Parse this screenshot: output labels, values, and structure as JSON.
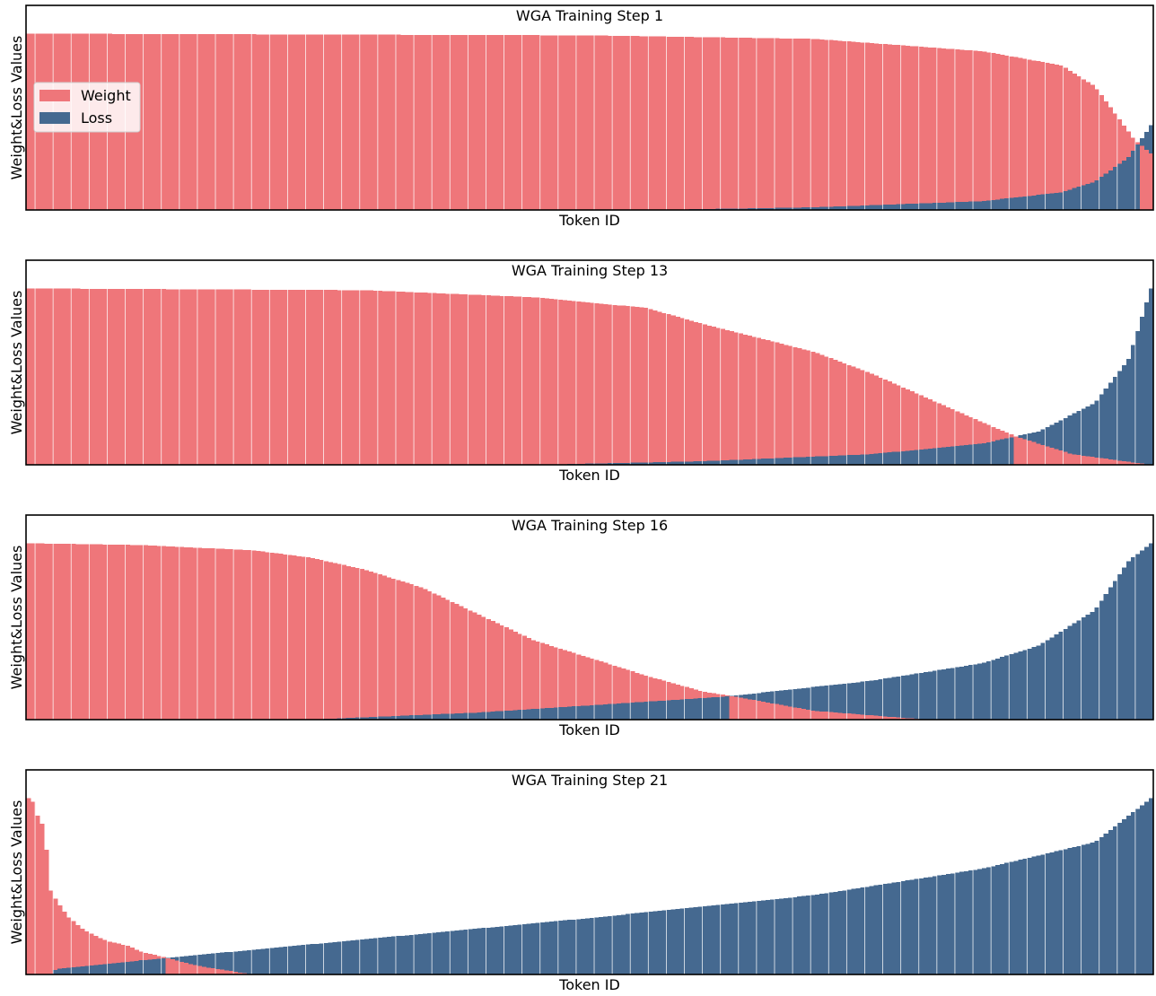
{
  "chart_data": [
    {
      "type": "bar",
      "title": "WGA Training Step 1",
      "xlabel": "Token ID",
      "ylabel": "Weight&Loss Values",
      "legend": {
        "placement": "upper-left",
        "entries": [
          "Weight",
          "Loss"
        ]
      },
      "colors": {
        "weight": "#ef767a",
        "loss": "#456990"
      },
      "n_tokens": 250,
      "ylim": [
        0,
        1.16
      ],
      "grid": false,
      "weight_keypoints": [
        [
          0,
          1.0
        ],
        [
          0.5,
          0.99
        ],
        [
          0.7,
          0.97
        ],
        [
          0.85,
          0.9
        ],
        [
          0.92,
          0.82
        ],
        [
          0.95,
          0.7
        ],
        [
          0.97,
          0.53
        ],
        [
          0.985,
          0.4
        ],
        [
          1.0,
          0.32
        ]
      ],
      "loss_keypoints": [
        [
          0,
          0.0
        ],
        [
          0.55,
          0.0
        ],
        [
          0.7,
          0.015
        ],
        [
          0.85,
          0.05
        ],
        [
          0.92,
          0.1
        ],
        [
          0.95,
          0.16
        ],
        [
          0.98,
          0.3
        ],
        [
          1.0,
          0.48
        ]
      ]
    },
    {
      "type": "bar",
      "title": "WGA Training Step 13",
      "xlabel": "Token ID",
      "ylabel": "Weight&Loss Values",
      "colors": {
        "weight": "#ef767a",
        "loss": "#456990"
      },
      "n_tokens": 250,
      "ylim": [
        0,
        1.16
      ],
      "grid": false,
      "weight_keypoints": [
        [
          0,
          1.0
        ],
        [
          0.3,
          0.99
        ],
        [
          0.45,
          0.95
        ],
        [
          0.55,
          0.89
        ],
        [
          0.6,
          0.8
        ],
        [
          0.65,
          0.72
        ],
        [
          0.7,
          0.64
        ],
        [
          0.75,
          0.52
        ],
        [
          0.8,
          0.38
        ],
        [
          0.85,
          0.24
        ],
        [
          0.88,
          0.16
        ],
        [
          0.93,
          0.06
        ],
        [
          1.0,
          0.0
        ]
      ],
      "loss_keypoints": [
        [
          0,
          0.0
        ],
        [
          0.45,
          0.0
        ],
        [
          0.6,
          0.02
        ],
        [
          0.75,
          0.06
        ],
        [
          0.85,
          0.12
        ],
        [
          0.9,
          0.19
        ],
        [
          0.95,
          0.35
        ],
        [
          0.98,
          0.6
        ],
        [
          1.0,
          1.0
        ]
      ]
    },
    {
      "type": "bar",
      "title": "WGA Training Step 16",
      "xlabel": "Token ID",
      "ylabel": "Weight&Loss Values",
      "colors": {
        "weight": "#ef767a",
        "loss": "#456990"
      },
      "n_tokens": 250,
      "ylim": [
        0,
        1.16
      ],
      "grid": false,
      "weight_keypoints": [
        [
          0,
          1.0
        ],
        [
          0.1,
          0.99
        ],
        [
          0.2,
          0.96
        ],
        [
          0.25,
          0.92
        ],
        [
          0.3,
          0.85
        ],
        [
          0.35,
          0.75
        ],
        [
          0.4,
          0.6
        ],
        [
          0.45,
          0.45
        ],
        [
          0.5,
          0.35
        ],
        [
          0.55,
          0.25
        ],
        [
          0.6,
          0.16
        ],
        [
          0.63,
          0.13
        ],
        [
          0.7,
          0.05
        ],
        [
          0.8,
          0.0
        ],
        [
          1.0,
          0.0
        ]
      ],
      "loss_keypoints": [
        [
          0,
          0.0
        ],
        [
          0.25,
          0.0
        ],
        [
          0.4,
          0.04
        ],
        [
          0.62,
          0.13
        ],
        [
          0.75,
          0.22
        ],
        [
          0.85,
          0.32
        ],
        [
          0.9,
          0.42
        ],
        [
          0.95,
          0.62
        ],
        [
          0.98,
          0.9
        ],
        [
          1.0,
          1.0
        ]
      ]
    },
    {
      "type": "bar",
      "title": "WGA Training Step 21",
      "xlabel": "Token ID",
      "ylabel": "Weight&Loss Values",
      "colors": {
        "weight": "#ef767a",
        "loss": "#456990"
      },
      "n_tokens": 250,
      "ylim": [
        0,
        1.16
      ],
      "grid": false,
      "weight_keypoints": [
        [
          0,
          1.0
        ],
        [
          0.004,
          0.98
        ],
        [
          0.008,
          0.9
        ],
        [
          0.015,
          0.82
        ],
        [
          0.018,
          0.5
        ],
        [
          0.025,
          0.42
        ],
        [
          0.035,
          0.33
        ],
        [
          0.05,
          0.25
        ],
        [
          0.07,
          0.19
        ],
        [
          0.09,
          0.16
        ],
        [
          0.1,
          0.13
        ],
        [
          0.12,
          0.1
        ],
        [
          0.15,
          0.05
        ],
        [
          0.2,
          0.0
        ],
        [
          1.0,
          0.0
        ]
      ],
      "loss_keypoints": [
        [
          0,
          0.0
        ],
        [
          0.02,
          0.0
        ],
        [
          0.025,
          0.03
        ],
        [
          0.1,
          0.08
        ],
        [
          0.3,
          0.2
        ],
        [
          0.5,
          0.32
        ],
        [
          0.7,
          0.45
        ],
        [
          0.85,
          0.6
        ],
        [
          0.95,
          0.75
        ],
        [
          1.0,
          1.0
        ]
      ]
    }
  ]
}
